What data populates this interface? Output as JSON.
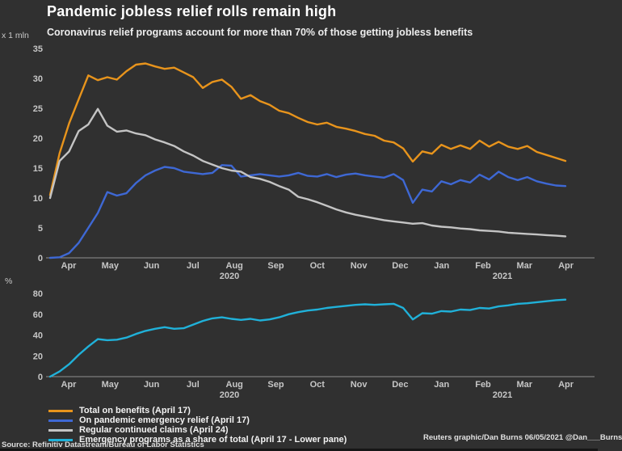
{
  "header": {
    "title": "Pandemic jobless relief rolls remain high",
    "subtitle": "Coronavirus relief programs account for more than 70% of those getting jobless benefits"
  },
  "colors": {
    "background": "#303030",
    "axis_line": "#8f8f8f",
    "tick_text": "#c6c6c6",
    "total_benefits": "#e8941c",
    "pandemic_relief": "#3e68d4",
    "regular_claims": "#c4c4c4",
    "emergency_share": "#20b1d9"
  },
  "chart_data": [
    {
      "type": "line",
      "panel": "upper",
      "unit_label": "x 1 mln",
      "ylim": [
        0,
        35
      ],
      "yticks": [
        0,
        5,
        10,
        15,
        20,
        25,
        30,
        35
      ],
      "xticks": [
        "Apr",
        "May",
        "Jun",
        "Jul",
        "Aug",
        "Sep",
        "Oct",
        "Nov",
        "Dec",
        "Jan",
        "Feb",
        "Mar",
        "Apr"
      ],
      "x_year_labels": [
        "2020",
        "2021"
      ],
      "x_start": "2020-04-04",
      "x_interval": "weekly",
      "grid": false,
      "series": [
        {
          "name": "Total on benefits (April 17)",
          "color": "#e8941c",
          "values": [
            10.5,
            17.5,
            22.5,
            26.5,
            30.5,
            29.7,
            30.2,
            29.8,
            31.2,
            32.3,
            32.5,
            32.0,
            31.6,
            31.8,
            31.0,
            30.2,
            28.4,
            29.4,
            29.8,
            28.6,
            26.6,
            27.2,
            26.2,
            25.6,
            24.6,
            24.2,
            23.4,
            22.7,
            22.3,
            22.6,
            21.9,
            21.6,
            21.2,
            20.7,
            20.4,
            19.6,
            19.3,
            18.3,
            16.1,
            17.8,
            17.4,
            18.9,
            18.2,
            18.8,
            18.2,
            19.6,
            18.6,
            19.4,
            18.6,
            18.2,
            18.7,
            17.7,
            17.2,
            16.7,
            16.2
          ]
        },
        {
          "name": "On pandemic emergency relief (April 17)",
          "color": "#3e68d4",
          "values": [
            0,
            0.1,
            0.8,
            2.5,
            5.0,
            7.5,
            11.0,
            10.4,
            10.8,
            12.5,
            13.8,
            14.6,
            15.2,
            15.0,
            14.4,
            14.2,
            14.0,
            14.2,
            15.5,
            15.4,
            13.6,
            13.8,
            14.0,
            13.8,
            13.6,
            13.8,
            14.2,
            13.7,
            13.6,
            14.0,
            13.5,
            13.9,
            14.1,
            13.8,
            13.6,
            13.4,
            14.0,
            13.0,
            9.2,
            11.4,
            11.1,
            12.8,
            12.3,
            13.0,
            12.6,
            13.9,
            13.1,
            14.4,
            13.5,
            13.0,
            13.5,
            12.8,
            12.4,
            12.1,
            12.0
          ]
        },
        {
          "name": "Regular continued claims (April 24)",
          "color": "#c4c4c4",
          "values": [
            10.0,
            16.2,
            17.8,
            21.2,
            22.3,
            24.9,
            22.1,
            21.1,
            21.3,
            20.8,
            20.5,
            19.8,
            19.3,
            18.7,
            17.8,
            17.1,
            16.2,
            15.6,
            15.0,
            14.6,
            14.4,
            13.5,
            13.2,
            12.7,
            12.0,
            11.4,
            10.2,
            9.8,
            9.3,
            8.7,
            8.1,
            7.6,
            7.2,
            6.9,
            6.6,
            6.3,
            6.1,
            5.9,
            5.7,
            5.8,
            5.4,
            5.2,
            5.1,
            4.9,
            4.8,
            4.6,
            4.5,
            4.4,
            4.2,
            4.1,
            4.0,
            3.9,
            3.8,
            3.7,
            3.6
          ]
        }
      ]
    },
    {
      "type": "line",
      "panel": "lower",
      "unit_label": "%",
      "ylim": [
        0,
        80
      ],
      "yticks": [
        0,
        20,
        40,
        60,
        80
      ],
      "xticks": [
        "Apr",
        "May",
        "Jun",
        "Jul",
        "Aug",
        "Sep",
        "Oct",
        "Nov",
        "Dec",
        "Jan",
        "Feb",
        "Mar",
        "Apr"
      ],
      "x_year_labels": [
        "2020",
        "2021"
      ],
      "x_start": "2020-04-04",
      "x_interval": "weekly",
      "grid": false,
      "series": [
        {
          "name": "Emergency programs as a share of total (April 17 - Lower pane)",
          "color": "#20b1d9",
          "values": [
            0,
            5,
            12,
            21,
            29,
            36,
            35,
            35.5,
            37.5,
            41,
            44,
            46,
            47.5,
            46,
            46.5,
            50,
            53.5,
            56,
            57,
            55.5,
            54.5,
            55.5,
            54,
            55,
            57,
            60,
            62,
            63.5,
            64.5,
            66,
            67,
            68,
            69,
            69.5,
            69,
            69.5,
            70,
            66,
            55,
            61,
            60.5,
            63,
            62.5,
            64.5,
            64,
            66,
            65.5,
            67.5,
            68.5,
            70,
            70.5,
            71.5,
            72.5,
            73.5,
            74
          ]
        }
      ]
    }
  ],
  "legend": {
    "position": "bottom-left",
    "items": [
      {
        "label": "Total on benefits (April 17)",
        "color": "#e8941c"
      },
      {
        "label": "On pandemic emergency relief (April 17)",
        "color": "#3e68d4"
      },
      {
        "label": "Regular continued claims (April 24)",
        "color": "#c4c4c4"
      },
      {
        "label": "Emergency programs as a share of total (April 17 - Lower pane)",
        "color": "#20b1d9"
      }
    ]
  },
  "footer": {
    "credit": "Reuters graphic/Dan Burns 06/05/2021 @Dan___Burns",
    "source": "Source: Refinitiv Datastream/Bureau of Labor Statistics"
  }
}
